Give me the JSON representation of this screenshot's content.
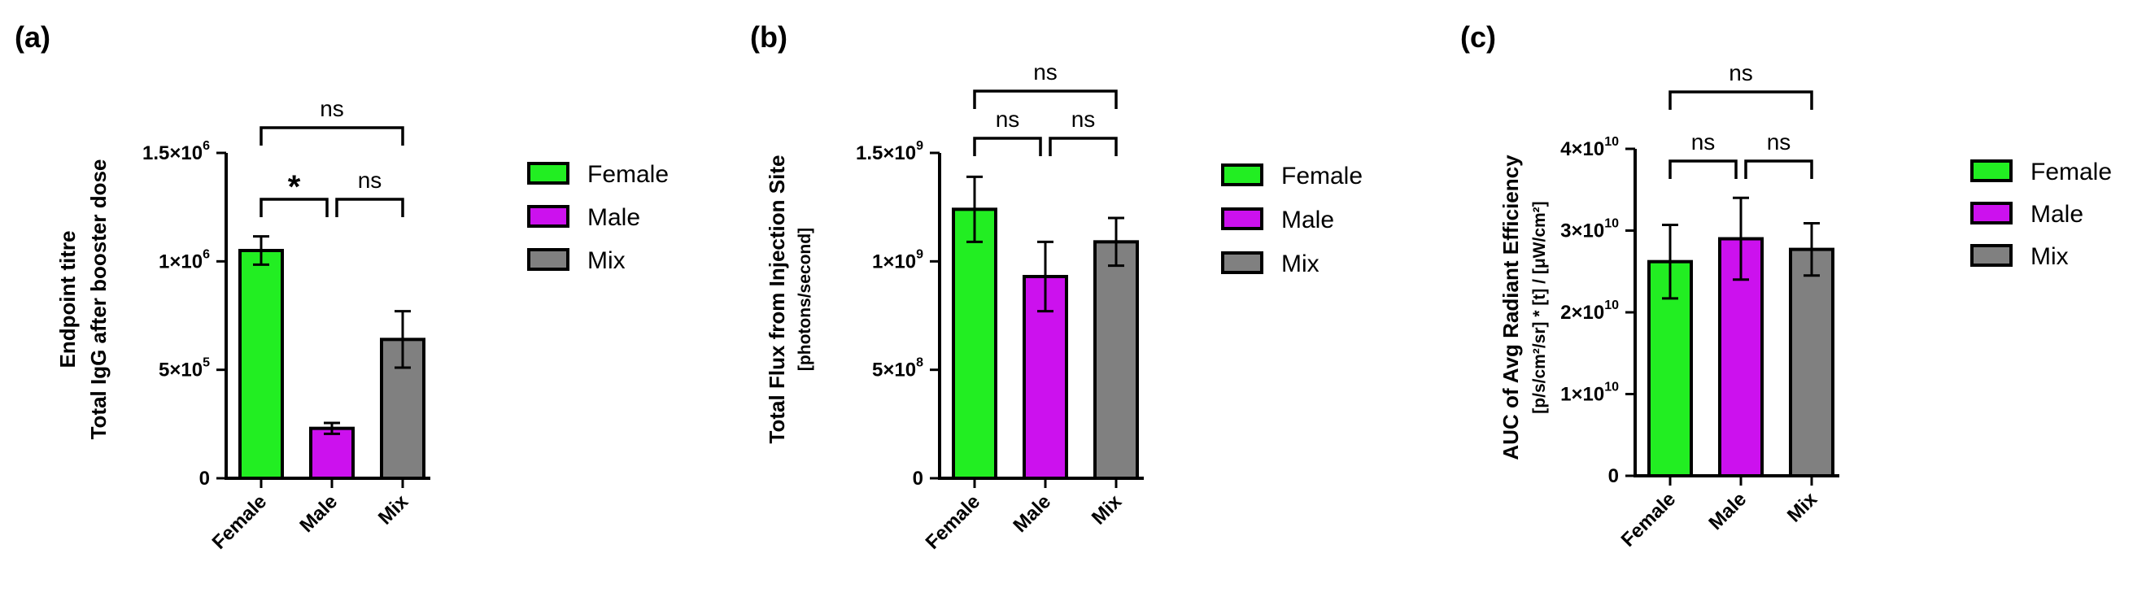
{
  "colors": {
    "Female": "#22ee22",
    "Male": "#cc11ee",
    "Mix": "#808080",
    "axis": "#000000"
  },
  "chart_data": [
    {
      "type": "bar",
      "panel": "(a)",
      "ylabel": [
        "Endpoint titre",
        "Total IgG after booster dose"
      ],
      "categories": [
        "Female",
        "Male",
        "Mix"
      ],
      "values": [
        1050000,
        230000,
        640000
      ],
      "errors": [
        65000,
        25000,
        130000
      ],
      "ylim": [
        0,
        1500000
      ],
      "yticks": [
        {
          "value": 0,
          "mant": "0",
          "exp": ""
        },
        {
          "value": 500000,
          "mant": "5×10",
          "exp": "5"
        },
        {
          "value": 1000000,
          "mant": "1×10",
          "exp": "6"
        },
        {
          "value": 1500000,
          "mant": "1.5×10",
          "exp": "6"
        }
      ],
      "comparisons": [
        {
          "from": 0,
          "to": 1,
          "label": "*",
          "level": 0
        },
        {
          "from": 1,
          "to": 2,
          "label": "ns",
          "level": 0
        },
        {
          "from": 0,
          "to": 2,
          "label": "ns",
          "level": 1
        }
      ],
      "legend": [
        "Female",
        "Male",
        "Mix"
      ]
    },
    {
      "type": "bar",
      "panel": "(b)",
      "ylabel": [
        "Total Flux from Injection Site",
        "[photons/second]"
      ],
      "categories": [
        "Female",
        "Male",
        "Mix"
      ],
      "values": [
        1240000000,
        930000000,
        1090000000
      ],
      "errors": [
        150000000,
        160000000,
        110000000
      ],
      "ylim": [
        0,
        1500000000
      ],
      "yticks": [
        {
          "value": 0,
          "mant": "0",
          "exp": ""
        },
        {
          "value": 500000000,
          "mant": "5×10",
          "exp": "8"
        },
        {
          "value": 1000000000,
          "mant": "1×10",
          "exp": "9"
        },
        {
          "value": 1500000000,
          "mant": "1.5×10",
          "exp": "9"
        }
      ],
      "comparisons": [
        {
          "from": 0,
          "to": 1,
          "label": "ns",
          "level": 0
        },
        {
          "from": 1,
          "to": 2,
          "label": "ns",
          "level": 0
        },
        {
          "from": 0,
          "to": 2,
          "label": "ns",
          "level": 1
        }
      ],
      "legend": [
        "Female",
        "Male",
        "Mix"
      ]
    },
    {
      "type": "bar",
      "panel": "(c)",
      "ylabel": [
        "AUC of Avg Radiant Efficiency",
        "[p/s/cm²/sr] * [t] / [μW/cm²]"
      ],
      "categories": [
        "Female",
        "Male",
        "Mix"
      ],
      "values": [
        26200000000,
        29000000000,
        27700000000
      ],
      "errors": [
        4500000000,
        5000000000,
        3200000000
      ],
      "ylim": [
        0,
        40000000000
      ],
      "yticks": [
        {
          "value": 0,
          "mant": "0",
          "exp": ""
        },
        {
          "value": 10000000000,
          "mant": "1×10",
          "exp": "10"
        },
        {
          "value": 20000000000,
          "mant": "2×10",
          "exp": "10"
        },
        {
          "value": 30000000000,
          "mant": "3×10",
          "exp": "10"
        },
        {
          "value": 40000000000,
          "mant": "4×10",
          "exp": "10"
        }
      ],
      "comparisons": [
        {
          "from": 0,
          "to": 1,
          "label": "ns",
          "level": 0
        },
        {
          "from": 1,
          "to": 2,
          "label": "ns",
          "level": 0
        },
        {
          "from": 0,
          "to": 2,
          "label": "ns",
          "level": 1
        }
      ],
      "legend": [
        "Female",
        "Male",
        "Mix"
      ]
    }
  ]
}
